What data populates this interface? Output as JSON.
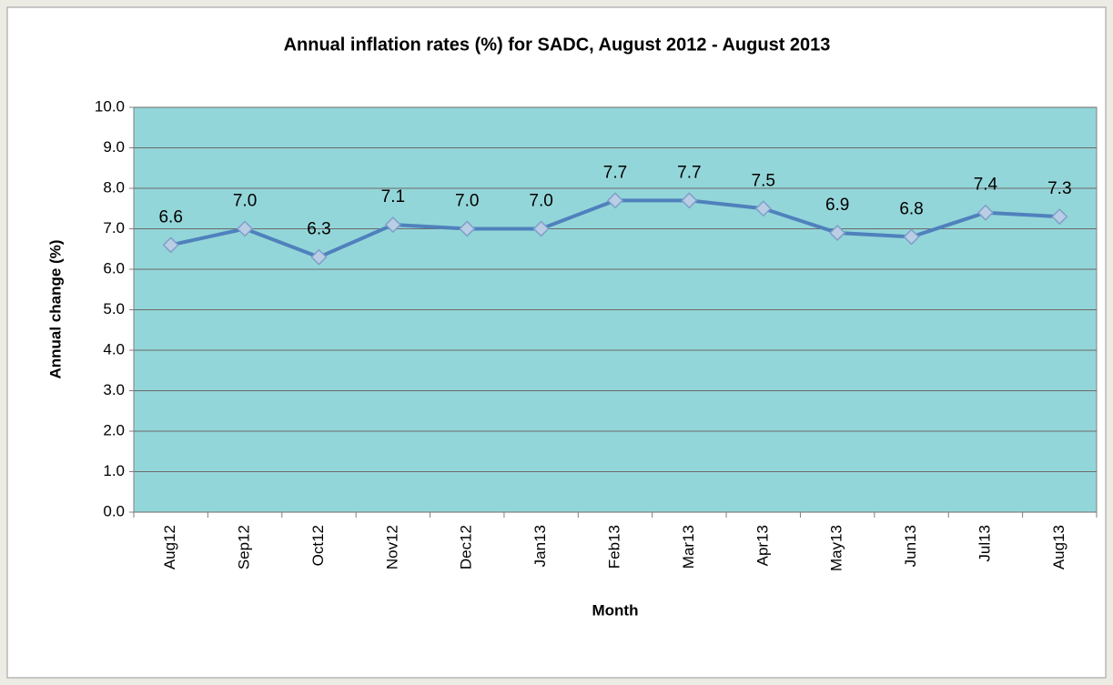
{
  "chart_data": {
    "type": "line",
    "title": "Annual inflation rates (%) for SADC, August 2012 - August  2013",
    "x_label": "Month",
    "y_label": "Annual change (%)",
    "categories": [
      "Aug12",
      "Sep12",
      "Oct12",
      "Nov12",
      "Dec12",
      "Jan13",
      "Feb13",
      "Mar13",
      "Apr13",
      "May13",
      "Jun13",
      "Jul13",
      "Aug13"
    ],
    "values": [
      6.6,
      7.0,
      6.3,
      7.1,
      7.0,
      7.0,
      7.7,
      7.7,
      7.5,
      6.9,
      6.8,
      7.4,
      7.3
    ],
    "value_labels": [
      "6.6",
      "7.0",
      "6.3",
      "7.1",
      "7.0",
      "7.0",
      "7.7",
      "7.7",
      "7.5",
      "6.9",
      "6.8",
      "7.4",
      "7.3"
    ],
    "color": "#4f81bd",
    "marker_color": "#b9cde5",
    "plot_background": "#93d6d9",
    "ylim": [
      0,
      10
    ],
    "yticks": [
      {
        "value": 0,
        "label": "0.0"
      },
      {
        "value": 1,
        "label": "1.0"
      },
      {
        "value": 2,
        "label": "2.0"
      },
      {
        "value": 3,
        "label": "3.0"
      },
      {
        "value": 4,
        "label": "4.0"
      },
      {
        "value": 5,
        "label": "5.0"
      },
      {
        "value": 6,
        "label": "6.0"
      },
      {
        "value": 7,
        "label": "7.0"
      },
      {
        "value": 8,
        "label": "8.0"
      },
      {
        "value": 9,
        "label": "9.0"
      },
      {
        "value": 10,
        "label": "10.0"
      }
    ],
    "grid": true
  }
}
